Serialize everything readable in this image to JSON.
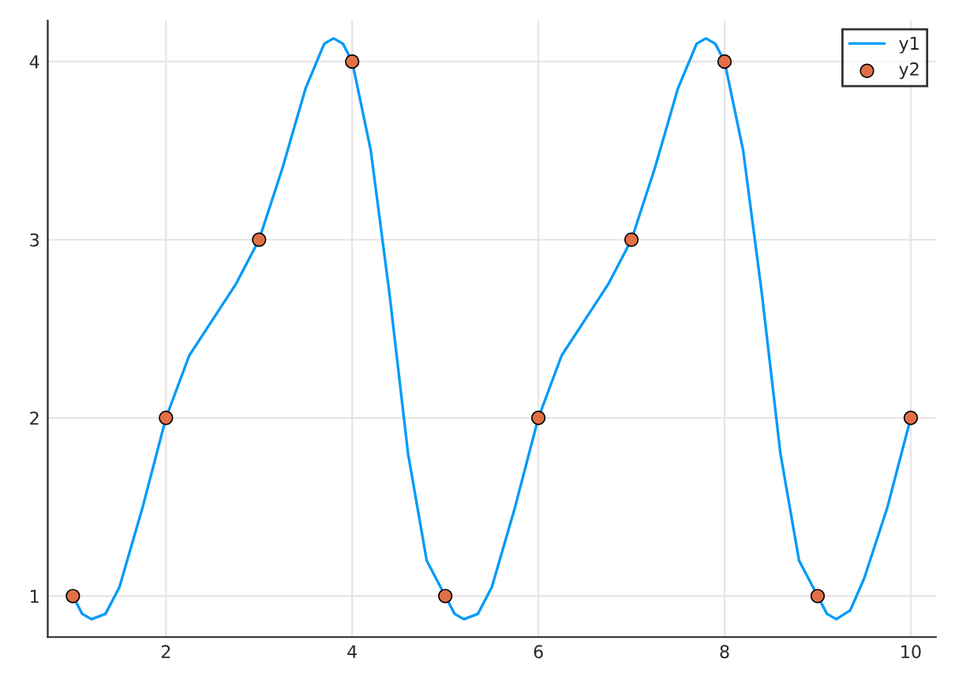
{
  "chart_data": {
    "type": "line",
    "xlim": [
      0.73,
      10.27
    ],
    "ylim": [
      0.77,
      4.23
    ],
    "xticks": [
      2,
      4,
      6,
      8,
      10
    ],
    "yticks": [
      1,
      2,
      3,
      4
    ],
    "grid": true,
    "legend": "top right",
    "series": [
      {
        "name": "y1",
        "color": "#009af9",
        "x": [
          1,
          1.1,
          1.2,
          1.35,
          1.5,
          1.75,
          2,
          2.25,
          2.5,
          2.75,
          3,
          3.25,
          3.5,
          3.7,
          3.8,
          3.9,
          4,
          4.2,
          4.4,
          4.6,
          4.8,
          5,
          5.1,
          5.2,
          5.35,
          5.5,
          5.75,
          6,
          6.25,
          6.5,
          6.75,
          7,
          7.25,
          7.5,
          7.7,
          7.8,
          7.9,
          8,
          8.2,
          8.4,
          8.6,
          8.8,
          9,
          9.1,
          9.2,
          9.35,
          9.5,
          9.75,
          10
        ],
        "values": [
          1,
          0.9,
          0.87,
          0.9,
          1.05,
          1.5,
          2,
          2.35,
          2.55,
          2.75,
          3,
          3.4,
          3.85,
          4.1,
          4.13,
          4.1,
          4,
          3.5,
          2.7,
          1.8,
          1.2,
          1,
          0.9,
          0.87,
          0.9,
          1.05,
          1.5,
          2,
          2.35,
          2.55,
          2.75,
          3,
          3.4,
          3.85,
          4.1,
          4.13,
          4.1,
          4,
          3.5,
          2.7,
          1.8,
          1.2,
          1,
          0.9,
          0.87,
          0.92,
          1.1,
          1.5,
          2
        ]
      },
      {
        "name": "y2",
        "type": "scatter",
        "color": "#e26f46",
        "marker": "circle",
        "x": [
          1,
          2,
          3,
          4,
          5,
          6,
          7,
          8,
          9,
          10
        ],
        "values": [
          1,
          2,
          3,
          4,
          1,
          2,
          3,
          4,
          1,
          2
        ]
      }
    ]
  }
}
